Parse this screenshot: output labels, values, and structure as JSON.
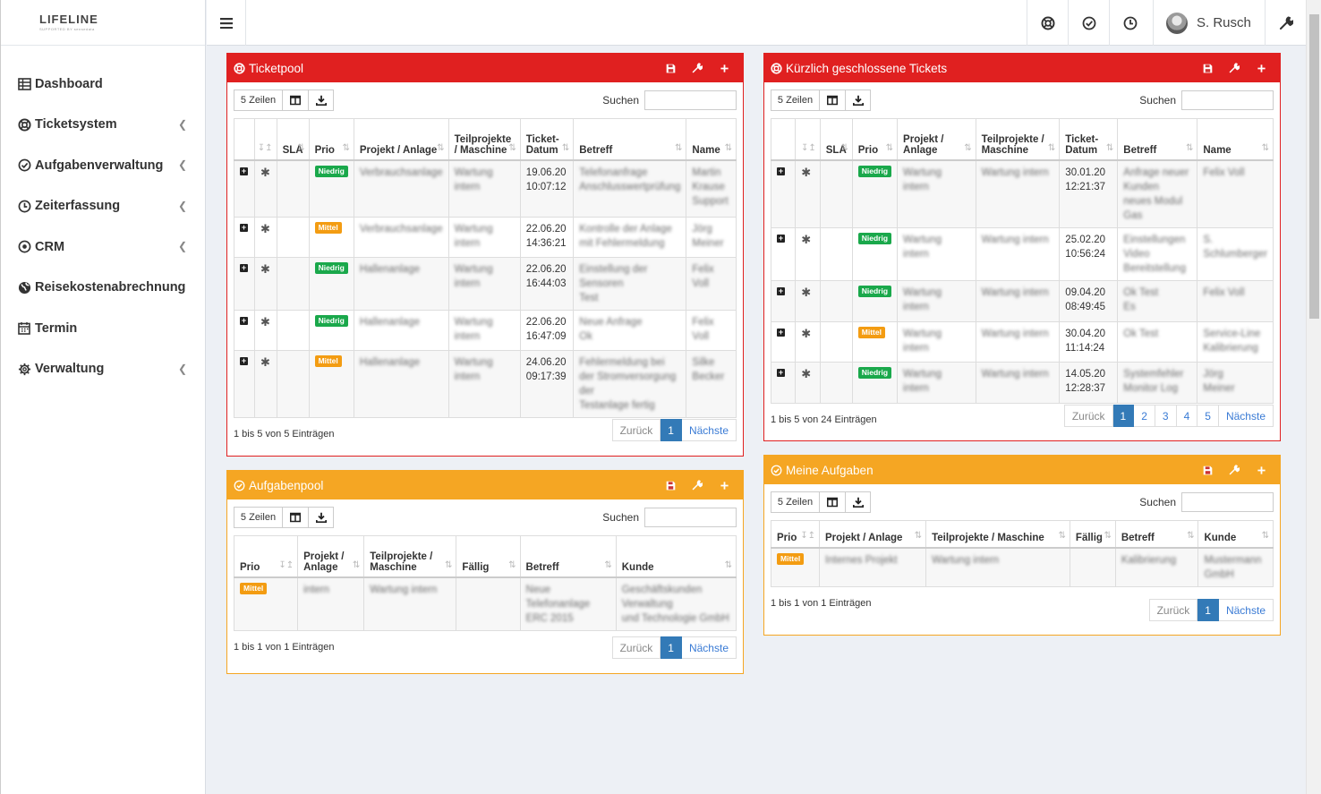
{
  "brand": {
    "name": "LIFELINE",
    "tagline": "SUPPORTED BY sensedata"
  },
  "nav": [
    {
      "label": "Dashboard",
      "icon": "dashboard-grid-icon",
      "chevron": false
    },
    {
      "label": "Ticketsystem",
      "icon": "lifebuoy-icon",
      "chevron": true
    },
    {
      "label": "Aufgabenverwaltung",
      "icon": "check-circle-icon",
      "chevron": true
    },
    {
      "label": "Zeiterfassung",
      "icon": "clock-icon",
      "chevron": true
    },
    {
      "label": "CRM",
      "icon": "target-icon",
      "chevron": true
    },
    {
      "label": "Reisekostenabrechnung",
      "icon": "globe-icon",
      "chevron": false
    },
    {
      "label": "Termin",
      "icon": "calendar-icon",
      "chevron": false
    },
    {
      "label": "Verwaltung",
      "icon": "gear-icon",
      "chevron": true
    }
  ],
  "topbar": {
    "user": "S. Rusch"
  },
  "common": {
    "rows_label": "5 Zeilen",
    "search_label": "Suchen",
    "prev": "Zurück",
    "next": "Nächste"
  },
  "ticketpool": {
    "title": "Ticketpool",
    "columns": [
      "",
      "",
      "SLA",
      "Prio",
      "Projekt / Anlage",
      "Teilprojekte / Maschine",
      "Ticket-Datum",
      "Betreff",
      "Name"
    ],
    "rows": [
      {
        "prio": "Niedrig",
        "prio_color": "green",
        "projekt": "Verbrauchsanlage",
        "teil": "Wartung intern",
        "datum": "19.06.20",
        "zeit": "10:07:12",
        "betreff": "Telefonanfrage\nAnschlusswertprüfung",
        "name": "Martin\nKrause\nSupport"
      },
      {
        "prio": "Mittel",
        "prio_color": "orange",
        "projekt": "Verbrauchsanlage",
        "teil": "Wartung intern",
        "datum": "22.06.20",
        "zeit": "14:36:21",
        "betreff": "Kontrolle der Anlage\nmit Fehlermeldung",
        "name": "Jörg\nMeiner"
      },
      {
        "prio": "Niedrig",
        "prio_color": "green",
        "projekt": "Hallenanlage",
        "teil": "Wartung intern",
        "datum": "22.06.20",
        "zeit": "16:44:03",
        "betreff": "Einstellung der Sensoren\nTest",
        "name": "Felix Voll"
      },
      {
        "prio": "Niedrig",
        "prio_color": "green",
        "projekt": "Hallenanlage",
        "teil": "Wartung intern",
        "datum": "22.06.20",
        "zeit": "16:47:09",
        "betreff": "Neue Anfrage\nOk",
        "name": "Felix Voll"
      },
      {
        "prio": "Mittel",
        "prio_color": "orange",
        "projekt": "Hallenanlage",
        "teil": "Wartung intern",
        "datum": "24.06.20",
        "zeit": "09:17:39",
        "betreff": "Fehlermeldung bei\nder Stromversorgung der\nTestanlage fertig",
        "name": "Silke\nBecker"
      }
    ],
    "info": "1 bis 5 von 5 Einträgen",
    "pages": [
      "1"
    ]
  },
  "aufgabenpool": {
    "title": "Aufgabenpool",
    "columns": [
      "Prio",
      "Projekt / Anlage",
      "Teilprojekte / Maschine",
      "Fällig",
      "Betreff",
      "Kunde"
    ],
    "rows": [
      {
        "prio": "Mittel",
        "projekt": "intern",
        "teil": "Wartung intern",
        "faellig": "",
        "betreff": "Neue Telefonanlage\nERC 2015",
        "kunde": "Geschäftskunden Verwaltung\nund Technologie GmbH"
      }
    ],
    "info": "1 bis 1 von 1 Einträgen",
    "pages": [
      "1"
    ]
  },
  "closed": {
    "title": "Kürzlich geschlossene Tickets",
    "columns": [
      "",
      "",
      "SLA",
      "Prio",
      "Projekt / Anlage",
      "Teilprojekte / Maschine",
      "Ticket-Datum",
      "Betreff",
      "Name"
    ],
    "rows": [
      {
        "prio": "Niedrig",
        "projekt": "Wartung intern",
        "teil": "Wartung intern",
        "datum": "30.01.20",
        "zeit": "12:21:37",
        "betreff": "Anfrage neuer Kunden\nneues Modul\nGas",
        "name": "Felix Voll"
      },
      {
        "prio": "Niedrig",
        "projekt": "Wartung intern",
        "teil": "Wartung intern",
        "datum": "25.02.20",
        "zeit": "10:56:24",
        "betreff": "Einstellungen\nVideo Bereitstellung",
        "name": "S.\nSchlumberger"
      },
      {
        "prio": "Niedrig",
        "projekt": "Wartung intern",
        "teil": "Wartung intern",
        "datum": "09.04.20",
        "zeit": "08:49:45",
        "betreff": "Ok Test\nEs",
        "name": "Felix Voll"
      },
      {
        "prio": "Mittel",
        "projekt": "Wartung intern",
        "teil": "Wartung intern",
        "datum": "30.04.20",
        "zeit": "11:14:24",
        "betreff": "Ok Test",
        "name": "Service-Line\nKalibrierung"
      },
      {
        "prio": "Niedrig",
        "projekt": "Wartung intern",
        "teil": "Wartung intern",
        "datum": "14.05.20",
        "zeit": "12:28:37",
        "betreff": "Systemfehler\nMonitor Log",
        "name": "Jörg\nMeiner"
      }
    ],
    "info": "1 bis 5 von 24 Einträgen",
    "pages": [
      "1",
      "2",
      "3",
      "4",
      "5"
    ]
  },
  "meine": {
    "title": "Meine Aufgaben",
    "columns": [
      "Prio",
      "Projekt / Anlage",
      "Teilprojekte / Maschine",
      "Fällig",
      "Betreff",
      "Kunde"
    ],
    "rows": [
      {
        "prio": "Mittel",
        "projekt": "Internes Projekt",
        "teil": "Wartung intern",
        "faellig": "",
        "betreff": "Kalibrierung",
        "kunde": "Mustermann GmbH"
      }
    ],
    "info": "1 bis 1 von 1 Einträgen",
    "pages": [
      "1"
    ]
  }
}
